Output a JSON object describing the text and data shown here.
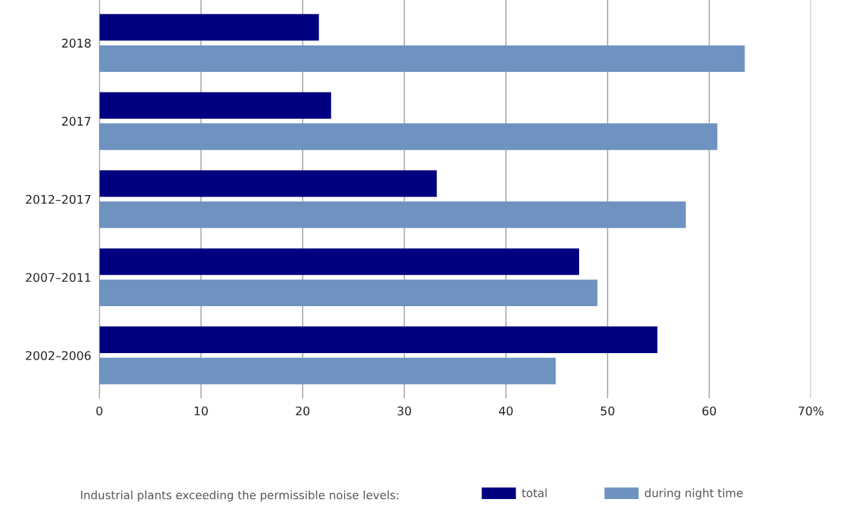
{
  "chart_data": {
    "type": "bar",
    "orientation": "horizontal",
    "categories": [
      "2018",
      "2017",
      "2012–2017",
      "2007–2011",
      "2002–2006"
    ],
    "series": [
      {
        "name": "total",
        "color": "#000080",
        "values": [
          21.6,
          22.8,
          33.2,
          47.2,
          54.9
        ]
      },
      {
        "name": "during night time",
        "color": "#6f93c0",
        "values": [
          63.5,
          60.8,
          57.7,
          49.0,
          44.9
        ]
      }
    ],
    "xlim": [
      0,
      70
    ],
    "xticks": [
      0,
      10,
      20,
      30,
      40,
      50,
      60,
      {
        "value": 70,
        "label": "70%"
      }
    ],
    "grid": "x",
    "legend": "bottom",
    "legend_title": "Industrial plants exceeding the permissible noise levels:"
  }
}
